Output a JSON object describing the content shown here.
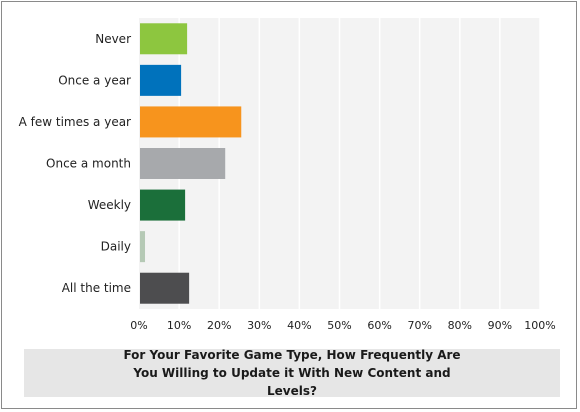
{
  "chart_data": {
    "type": "bar",
    "orientation": "horizontal",
    "categories": [
      "Never",
      "Once a year",
      "A few times a year",
      "Once a month",
      "Weekly",
      "Daily",
      "All the time"
    ],
    "values": [
      12,
      10.5,
      25.5,
      21.5,
      11.5,
      1.5,
      12.5
    ],
    "colors": [
      "#8dc63f",
      "#0072bc",
      "#f7941d",
      "#a7a9ac",
      "#1b6f3a",
      "#b5c9b5",
      "#4d4d4f"
    ],
    "xlim": [
      0,
      100
    ],
    "xticks": [
      "0%",
      "10%",
      "20%",
      "30%",
      "40%",
      "50%",
      "60%",
      "70%",
      "80%",
      "90%",
      "100%"
    ],
    "grid": true,
    "title": "For Your Favorite Game Type, How Frequently Are You Willing to Update it With New Content and Levels?"
  }
}
